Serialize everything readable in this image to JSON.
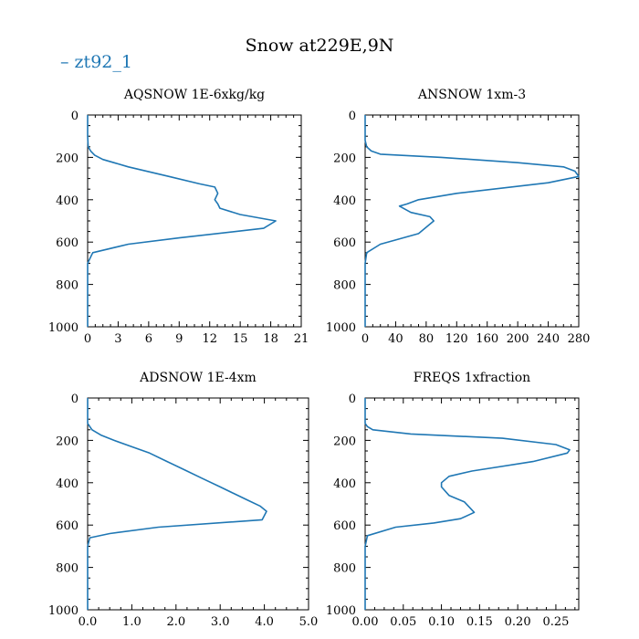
{
  "title": "Snow at229E,9N",
  "legend": {
    "label": "zt92_1",
    "color": "#1f77b4"
  },
  "chart_data": [
    {
      "type": "line",
      "title": "AQSNOW  1E-6xkg/kg",
      "xlim": [
        0,
        21
      ],
      "ylim": [
        1000,
        0
      ],
      "xticks": [
        0,
        3,
        6,
        9,
        12,
        15,
        18,
        21
      ],
      "xtick_labels": [
        "0",
        "3",
        "6",
        "9",
        "12",
        "15",
        "18",
        "21"
      ],
      "yticks": [
        0,
        200,
        400,
        600,
        800,
        1000
      ],
      "ytick_labels": [
        "0",
        "200",
        "400",
        "600",
        "800",
        "1000"
      ],
      "series": [
        {
          "name": "zt92_1",
          "x": [
            0,
            0,
            0.05,
            0.3,
            0.7,
            1.5,
            4,
            8,
            11,
            12.5,
            12.8,
            12.5,
            12.8,
            13,
            15,
            18.5,
            17.3,
            9,
            4,
            0.5,
            0,
            0,
            0
          ],
          "y": [
            0,
            100,
            150,
            170,
            190,
            210,
            245,
            290,
            325,
            340,
            370,
            400,
            420,
            440,
            470,
            500,
            535,
            580,
            610,
            650,
            700,
            800,
            1000
          ]
        }
      ]
    },
    {
      "type": "line",
      "title": "ANSNOW  1xm-3",
      "xlim": [
        0,
        280
      ],
      "ylim": [
        1000,
        0
      ],
      "xticks": [
        0,
        40,
        80,
        120,
        160,
        200,
        240,
        280
      ],
      "xtick_labels": [
        "0",
        "40",
        "80",
        "120",
        "160",
        "200",
        "240",
        "280"
      ],
      "yticks": [
        0,
        200,
        400,
        600,
        800,
        1000
      ],
      "ytick_labels": [
        "0",
        "200",
        "400",
        "600",
        "800",
        "1000"
      ],
      "series": [
        {
          "name": "zt92_1",
          "x": [
            0,
            0,
            2,
            8,
            20,
            100,
            200,
            260,
            275,
            280,
            240,
            120,
            70,
            55,
            45,
            60,
            85,
            90,
            70,
            40,
            20,
            2,
            0,
            0
          ],
          "y": [
            0,
            120,
            150,
            170,
            185,
            200,
            225,
            245,
            265,
            290,
            320,
            370,
            400,
            420,
            430,
            460,
            480,
            500,
            560,
            590,
            610,
            650,
            700,
            1000
          ]
        }
      ]
    },
    {
      "type": "line",
      "title": "ADSNOW  1E-4xm",
      "xlim": [
        0,
        5.0
      ],
      "ylim": [
        1000,
        0
      ],
      "xticks": [
        0,
        1,
        2,
        3,
        4,
        5
      ],
      "xtick_labels": [
        "0.0",
        "1.0",
        "2.0",
        "3.0",
        "4.0",
        "5.0"
      ],
      "yticks": [
        0,
        200,
        400,
        600,
        800,
        1000
      ],
      "ytick_labels": [
        "0",
        "200",
        "400",
        "600",
        "800",
        "1000"
      ],
      "series": [
        {
          "name": "zt92_1",
          "x": [
            0,
            0,
            0.1,
            0.3,
            0.6,
            1.0,
            1.4,
            1.8,
            2.2,
            2.6,
            3.0,
            3.3,
            3.6,
            3.9,
            4.05,
            3.95,
            1.6,
            0.5,
            0.05,
            0,
            0
          ],
          "y": [
            0,
            120,
            150,
            175,
            200,
            230,
            260,
            300,
            340,
            380,
            420,
            450,
            480,
            510,
            535,
            575,
            610,
            640,
            660,
            700,
            1000
          ]
        }
      ]
    },
    {
      "type": "line",
      "title": "FREQS  1xfraction",
      "xlim": [
        0,
        0.28
      ],
      "ylim": [
        1000,
        0
      ],
      "xticks": [
        0,
        0.05,
        0.1,
        0.15,
        0.2,
        0.25
      ],
      "xtick_labels": [
        "0.00",
        "0.05",
        "0.10",
        "0.15",
        "0.20",
        "0.25"
      ],
      "yticks": [
        0,
        200,
        400,
        600,
        800,
        1000
      ],
      "ytick_labels": [
        "0",
        "200",
        "400",
        "600",
        "800",
        "1000"
      ],
      "series": [
        {
          "name": "zt92_1",
          "x": [
            0,
            0,
            0.003,
            0.01,
            0.06,
            0.18,
            0.25,
            0.268,
            0.265,
            0.22,
            0.14,
            0.11,
            0.1,
            0.1,
            0.11,
            0.13,
            0.143,
            0.125,
            0.09,
            0.04,
            0.003,
            0,
            0
          ],
          "y": [
            0,
            120,
            135,
            150,
            170,
            190,
            220,
            245,
            260,
            300,
            345,
            370,
            400,
            420,
            460,
            490,
            540,
            570,
            590,
            610,
            650,
            700,
            1000
          ]
        }
      ]
    }
  ]
}
